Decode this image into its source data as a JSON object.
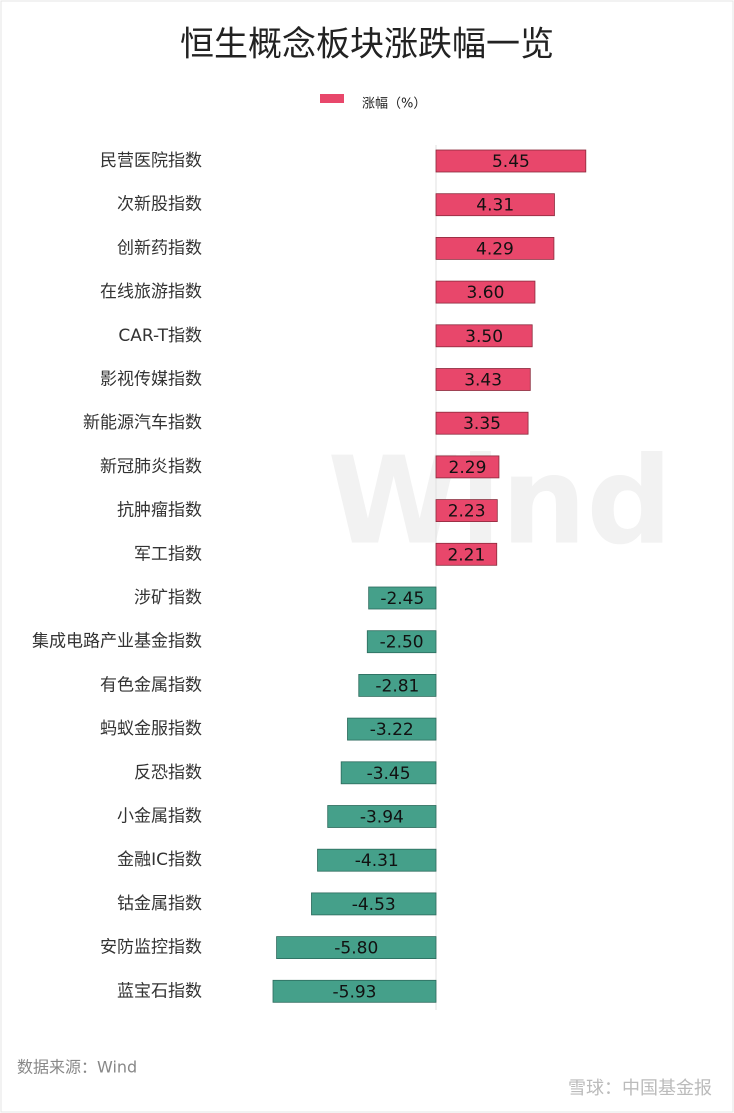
{
  "chart_data": {
    "type": "barh",
    "title": "恒生概念板块涨跌幅一览",
    "categories": [
      "民营医院指数",
      "次新股指数",
      "创新药指数",
      "在线旅游指数",
      "CAR-T指数",
      "影视传媒指数",
      "新能源汽车指数",
      "新冠肺炎指数",
      "抗肿瘤指数",
      "军工指数",
      "涉矿指数",
      "集成电路产业基金指数",
      "有色金属指数",
      "蚂蚁金服指数",
      "反恐指数",
      "小金属指数",
      "金融IC指数",
      "钴金属指数",
      "安防监控指数",
      "蓝宝石指数"
    ],
    "series": [
      {
        "name": "涨幅（%）",
        "color": "#e8476b",
        "negative_color": "#45a08a",
        "values": [
          5.45,
          4.31,
          4.29,
          3.6,
          3.5,
          3.43,
          3.35,
          2.29,
          2.23,
          2.21,
          -2.45,
          -2.5,
          -2.81,
          -3.22,
          -3.45,
          -3.94,
          -4.31,
          -4.53,
          -5.8,
          -5.93
        ],
        "value_labels": [
          "5.45",
          "4.31",
          "4.29",
          "3.60",
          "3.50",
          "3.43",
          "3.35",
          "2.29",
          "2.23",
          "2.21",
          "-2.45",
          "-2.50",
          "-2.81",
          "-3.22",
          "-3.45",
          "-3.94",
          "-4.31",
          "-4.53",
          "-5.80",
          "-5.93"
        ]
      }
    ],
    "source": "数据来源：Wind",
    "background_watermark": "Wind",
    "watermark": "雪球：中国基金报"
  }
}
